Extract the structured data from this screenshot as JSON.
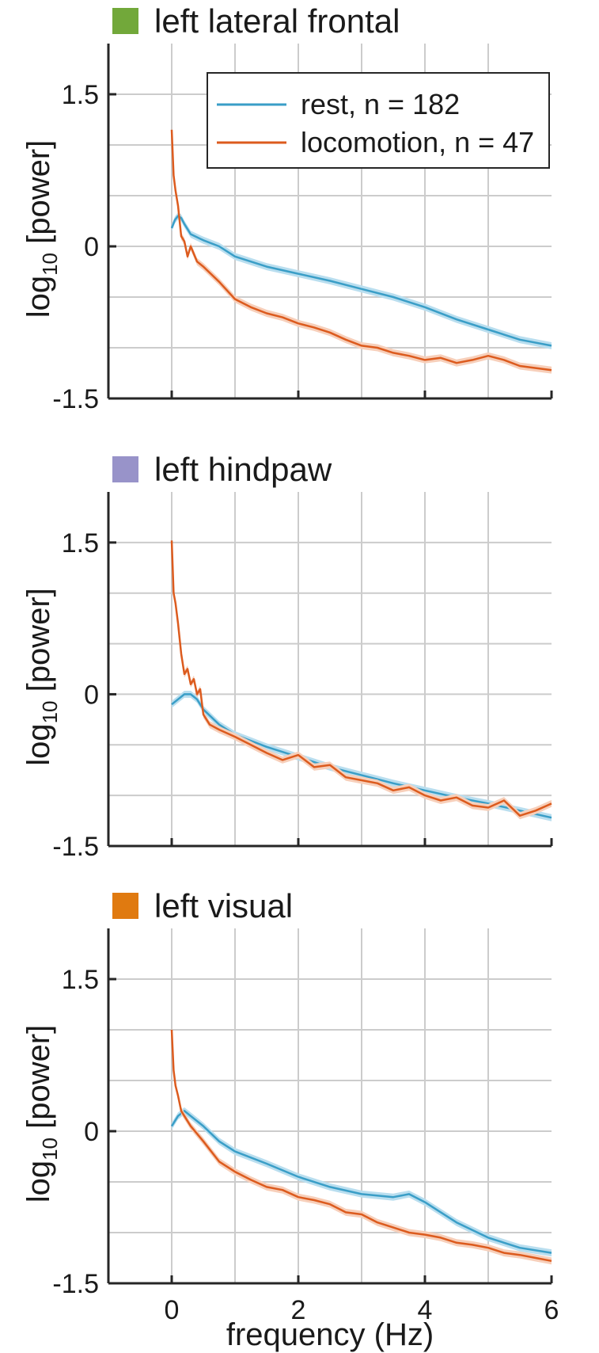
{
  "colors": {
    "rest": "#3a9ec7",
    "locomotion": "#dc5b1e",
    "rest_band": "#b9deef",
    "locomotion_band": "#f7cfba"
  },
  "chart_data": [
    {
      "type": "line",
      "title": "left lateral frontal",
      "title_marker_color": "#72a83a",
      "ylabel_base": "log",
      "ylabel_sub": "10",
      "ylabel_rest": " [power]",
      "xlabel": "",
      "xlim": [
        -1,
        6
      ],
      "ylim": [
        -1.5,
        2
      ],
      "xticks": [
        0,
        2,
        4,
        6
      ],
      "xtick_labels": [
        "",
        "",
        "",
        ""
      ],
      "yticks": [
        -1.5,
        0,
        1.5
      ],
      "ytick_labels": [
        "-1.5",
        "0",
        "1.5"
      ],
      "grid": true,
      "legend": {
        "position": "top-right",
        "entries": [
          "rest, n = 182",
          "locomotion, n = 47"
        ]
      },
      "series": [
        {
          "name": "rest",
          "x": [
            0,
            0.05,
            0.1,
            0.15,
            0.2,
            0.3,
            0.5,
            0.75,
            1,
            1.5,
            2,
            2.5,
            3,
            3.5,
            4,
            4.5,
            5,
            5.5,
            6
          ],
          "y": [
            0.18,
            0.26,
            0.3,
            0.28,
            0.22,
            0.12,
            0.06,
            0.0,
            -0.1,
            -0.2,
            -0.27,
            -0.34,
            -0.42,
            -0.5,
            -0.6,
            -0.72,
            -0.82,
            -0.92,
            -0.98
          ]
        },
        {
          "name": "locomotion",
          "x": [
            0,
            0.03,
            0.06,
            0.1,
            0.15,
            0.2,
            0.25,
            0.3,
            0.4,
            0.5,
            0.75,
            1,
            1.25,
            1.5,
            1.75,
            2,
            2.25,
            2.5,
            2.75,
            3,
            3.25,
            3.5,
            3.75,
            4,
            4.25,
            4.5,
            4.75,
            5,
            5.25,
            5.5,
            5.75,
            6
          ],
          "y": [
            1.15,
            0.7,
            0.55,
            0.4,
            0.1,
            0.05,
            -0.1,
            0.0,
            -0.15,
            -0.2,
            -0.35,
            -0.52,
            -0.6,
            -0.66,
            -0.7,
            -0.76,
            -0.8,
            -0.85,
            -0.92,
            -0.98,
            -1.0,
            -1.05,
            -1.08,
            -1.12,
            -1.1,
            -1.15,
            -1.12,
            -1.08,
            -1.12,
            -1.18,
            -1.2,
            -1.22
          ]
        }
      ]
    },
    {
      "type": "line",
      "title": "left hindpaw",
      "title_marker_color": "#9893c9",
      "ylabel_base": "log",
      "ylabel_sub": "10",
      "ylabel_rest": " [power]",
      "xlabel": "",
      "xlim": [
        -1,
        6
      ],
      "ylim": [
        -1.5,
        2
      ],
      "xticks": [
        0,
        2,
        4,
        6
      ],
      "xtick_labels": [
        "",
        "",
        "",
        ""
      ],
      "yticks": [
        -1.5,
        0,
        1.5
      ],
      "ytick_labels": [
        "-1.5",
        "0",
        "1.5"
      ],
      "grid": true,
      "series": [
        {
          "name": "rest",
          "x": [
            0,
            0.1,
            0.2,
            0.3,
            0.4,
            0.5,
            0.75,
            1,
            1.5,
            2,
            2.5,
            3,
            3.5,
            4,
            4.5,
            5,
            5.5,
            6
          ],
          "y": [
            -0.1,
            -0.05,
            0.0,
            0.0,
            -0.05,
            -0.15,
            -0.3,
            -0.4,
            -0.52,
            -0.62,
            -0.72,
            -0.8,
            -0.88,
            -0.95,
            -1.02,
            -1.08,
            -1.15,
            -1.22
          ]
        },
        {
          "name": "locomotion",
          "x": [
            0,
            0.03,
            0.06,
            0.1,
            0.15,
            0.2,
            0.25,
            0.3,
            0.35,
            0.4,
            0.45,
            0.5,
            0.6,
            0.75,
            1,
            1.25,
            1.5,
            1.75,
            2,
            2.25,
            2.5,
            2.75,
            3,
            3.25,
            3.5,
            3.75,
            4,
            4.25,
            4.5,
            4.75,
            5,
            5.25,
            5.5,
            5.75,
            6
          ],
          "y": [
            1.52,
            1.0,
            0.9,
            0.7,
            0.4,
            0.2,
            0.25,
            0.1,
            0.15,
            0.0,
            0.05,
            -0.2,
            -0.3,
            -0.35,
            -0.42,
            -0.5,
            -0.58,
            -0.65,
            -0.6,
            -0.72,
            -0.7,
            -0.82,
            -0.85,
            -0.88,
            -0.95,
            -0.92,
            -1.0,
            -1.05,
            -1.02,
            -1.1,
            -1.12,
            -1.05,
            -1.2,
            -1.15,
            -1.08
          ]
        }
      ]
    },
    {
      "type": "line",
      "title": "left visual",
      "title_marker_color": "#e07a10",
      "ylabel_base": "log",
      "ylabel_sub": "10",
      "ylabel_rest": " [power]",
      "xlabel": "frequency (Hz)",
      "xlim": [
        -1,
        6
      ],
      "ylim": [
        -1.5,
        2
      ],
      "xticks": [
        0,
        2,
        4,
        6
      ],
      "xtick_labels": [
        "0",
        "2",
        "4",
        "6"
      ],
      "yticks": [
        -1.5,
        0,
        1.5
      ],
      "ytick_labels": [
        "-1.5",
        "0",
        "1.5"
      ],
      "grid": true,
      "series": [
        {
          "name": "rest",
          "x": [
            0,
            0.1,
            0.2,
            0.3,
            0.5,
            0.75,
            1,
            1.5,
            2,
            2.5,
            3,
            3.5,
            3.75,
            4,
            4.5,
            5,
            5.5,
            6
          ],
          "y": [
            0.05,
            0.15,
            0.2,
            0.15,
            0.05,
            -0.1,
            -0.2,
            -0.32,
            -0.45,
            -0.55,
            -0.62,
            -0.65,
            -0.62,
            -0.7,
            -0.9,
            -1.05,
            -1.15,
            -1.2
          ]
        },
        {
          "name": "locomotion",
          "x": [
            0,
            0.03,
            0.06,
            0.1,
            0.15,
            0.2,
            0.3,
            0.5,
            0.75,
            1,
            1.25,
            1.5,
            1.75,
            2,
            2.25,
            2.5,
            2.75,
            3,
            3.25,
            3.5,
            3.75,
            4,
            4.25,
            4.5,
            4.75,
            5,
            5.25,
            5.5,
            5.75,
            6
          ],
          "y": [
            1.0,
            0.6,
            0.45,
            0.35,
            0.2,
            0.15,
            0.05,
            -0.1,
            -0.3,
            -0.4,
            -0.48,
            -0.55,
            -0.58,
            -0.65,
            -0.68,
            -0.72,
            -0.8,
            -0.82,
            -0.9,
            -0.95,
            -1.0,
            -1.02,
            -1.05,
            -1.1,
            -1.12,
            -1.15,
            -1.2,
            -1.22,
            -1.25,
            -1.28
          ]
        }
      ]
    }
  ]
}
